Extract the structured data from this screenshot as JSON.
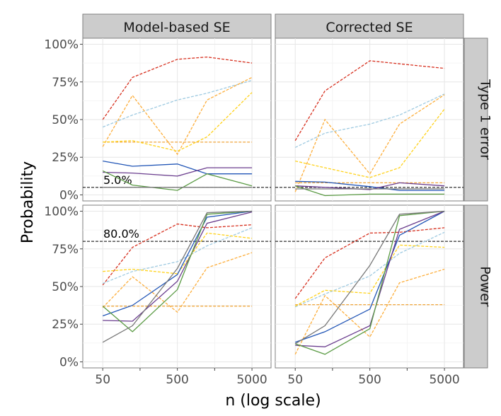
{
  "chart_data": {
    "type": "line",
    "xlabel": "n (log scale)",
    "ylabel": "Probability",
    "x": [
      50,
      125,
      500,
      1250,
      5000
    ],
    "x_ticks": [
      50,
      500,
      5000
    ],
    "x_tick_labels": [
      "50",
      "500",
      "5000"
    ],
    "x_minor_ticks": [
      158,
      1581
    ],
    "x_scale": "log",
    "xlim": [
      27,
      9000
    ],
    "ylim": [
      -0.04,
      1.04
    ],
    "y_ticks": [
      0,
      0.25,
      0.5,
      0.75,
      1
    ],
    "y_tick_labels": [
      "0%",
      "25%",
      "50%",
      "75%",
      "100%"
    ],
    "column_facets": [
      "Model-based SE",
      "Corrected SE"
    ],
    "row_facets": [
      "Type 1 error",
      "Power"
    ],
    "grid": true,
    "series_colors": [
      "#d7301f",
      "#9ecae1",
      "#fdae3b",
      "#f0a63c",
      "#ffd21a",
      "#2155b6",
      "#6a3d8e",
      "#5b9b45",
      "#777777"
    ],
    "series_styles": [
      "dashed",
      "dashed",
      "dashed",
      "dashed",
      "dashed",
      "solid",
      "solid",
      "solid",
      "solid"
    ],
    "panels": [
      {
        "col": 0,
        "row": 0,
        "reference": {
          "y": 0.05,
          "label": "5.0%"
        },
        "series": [
          {
            "values": [
              0.5,
              0.78,
              0.9,
              0.915,
              0.875
            ]
          },
          {
            "values": [
              0.45,
              0.53,
              0.63,
              0.675,
              0.76
            ]
          },
          {
            "values": [
              0.32,
              0.66,
              0.27,
              0.63,
              0.78
            ]
          },
          {
            "values": [
              0.35,
              0.35,
              0.35,
              0.35,
              0.35
            ]
          },
          {
            "values": [
              0.35,
              0.36,
              0.29,
              0.385,
              0.68
            ]
          },
          {
            "values": [
              0.225,
              0.19,
              0.205,
              0.14,
              0.14
            ]
          },
          {
            "values": [
              0.15,
              0.145,
              0.125,
              0.18,
              0.18
            ]
          },
          {
            "values": [
              0.16,
              0.065,
              0.03,
              0.14,
              0.06
            ]
          },
          {
            "values": [
              0.05,
              0.05,
              0.05,
              0.05,
              0.05
            ]
          }
        ]
      },
      {
        "col": 1,
        "row": 0,
        "reference": {
          "y": 0.05,
          "label": ""
        },
        "series": [
          {
            "values": [
              0.36,
              0.69,
              0.89,
              0.87,
              0.84
            ]
          },
          {
            "values": [
              0.315,
              0.41,
              0.47,
              0.53,
              0.67
            ]
          },
          {
            "values": [
              0.02,
              0.5,
              0.14,
              0.47,
              0.665
            ]
          },
          {
            "values": [
              0.08,
              0.08,
              0.08,
              0.08,
              0.08
            ]
          },
          {
            "values": [
              0.225,
              0.18,
              0.115,
              0.18,
              0.57
            ]
          },
          {
            "values": [
              0.09,
              0.085,
              0.055,
              0.03,
              0.03
            ]
          },
          {
            "values": [
              0.06,
              0.05,
              0.035,
              0.08,
              0.06
            ]
          },
          {
            "values": [
              0.06,
              -0.005,
              0.005,
              0.005,
              0.005
            ]
          },
          {
            "values": [
              0.04,
              0.04,
              0.04,
              0.04,
              0.04
            ]
          }
        ]
      },
      {
        "col": 0,
        "row": 1,
        "reference": {
          "y": 0.8,
          "label": "80.0%"
        },
        "series": [
          {
            "values": [
              0.51,
              0.76,
              0.915,
              0.89,
              0.91
            ]
          },
          {
            "values": [
              0.52,
              0.6,
              0.665,
              0.77,
              0.89
            ]
          },
          {
            "values": [
              0.36,
              0.565,
              0.33,
              0.625,
              0.725
            ]
          },
          {
            "values": [
              0.37,
              0.37,
              0.37,
              0.37,
              0.37
            ]
          },
          {
            "values": [
              0.6,
              0.615,
              0.585,
              0.855,
              0.82
            ]
          },
          {
            "values": [
              0.305,
              0.375,
              0.58,
              0.96,
              1.0
            ]
          },
          {
            "values": [
              0.275,
              0.27,
              0.535,
              0.92,
              0.995
            ]
          },
          {
            "values": [
              0.37,
              0.2,
              0.48,
              0.98,
              1.0
            ]
          },
          {
            "values": [
              0.13,
              0.24,
              0.62,
              0.99,
              1.0
            ]
          }
        ]
      },
      {
        "col": 1,
        "row": 1,
        "reference": {
          "y": 0.8,
          "label": ""
        },
        "series": [
          {
            "values": [
              0.42,
              0.69,
              0.855,
              0.86,
              0.89
            ]
          },
          {
            "values": [
              0.365,
              0.45,
              0.57,
              0.72,
              0.86
            ]
          },
          {
            "values": [
              0.05,
              0.44,
              0.165,
              0.525,
              0.615
            ]
          },
          {
            "values": [
              0.38,
              0.38,
              0.38,
              0.38,
              0.38
            ]
          },
          {
            "values": [
              0.37,
              0.475,
              0.455,
              0.775,
              0.76
            ]
          },
          {
            "values": [
              0.13,
              0.2,
              0.35,
              0.84,
              1.0
            ]
          },
          {
            "values": [
              0.11,
              0.1,
              0.24,
              0.88,
              1.0
            ]
          },
          {
            "values": [
              0.12,
              0.05,
              0.22,
              0.97,
              1.0
            ]
          },
          {
            "values": [
              0.12,
              0.24,
              0.64,
              0.98,
              1.0
            ]
          }
        ]
      }
    ]
  }
}
